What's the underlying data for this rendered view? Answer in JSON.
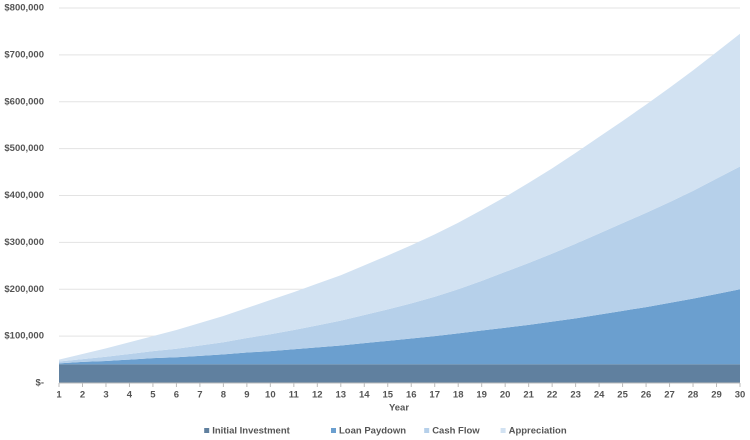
{
  "chart_data": {
    "type": "stacked_area",
    "x_label": "Year",
    "x": [
      1,
      2,
      3,
      4,
      5,
      6,
      7,
      8,
      9,
      10,
      11,
      12,
      13,
      14,
      15,
      16,
      17,
      18,
      19,
      20,
      21,
      22,
      23,
      24,
      25,
      26,
      27,
      28,
      29,
      30
    ],
    "xlim": [
      1,
      30
    ],
    "ylim": [
      0,
      800000
    ],
    "yticks": [
      {
        "value": 0,
        "label": "$-"
      },
      {
        "value": 100000,
        "label": "$100,000"
      },
      {
        "value": 200000,
        "label": "$200,000"
      },
      {
        "value": 300000,
        "label": "$300,000"
      },
      {
        "value": 400000,
        "label": "$400,000"
      },
      {
        "value": 500000,
        "label": "$500,000"
      },
      {
        "value": 600000,
        "label": "$600,000"
      },
      {
        "value": 700000,
        "label": "$700,000"
      },
      {
        "value": 800000,
        "label": "$800,000"
      }
    ],
    "grid": true,
    "legend": "bottom",
    "series": [
      {
        "name": "Initial Investment",
        "color": "#60809f",
        "values": [
          40000,
          40000,
          40000,
          40000,
          40000,
          40000,
          40000,
          40000,
          40000,
          40000,
          40000,
          40000,
          40000,
          40000,
          40000,
          40000,
          40000,
          40000,
          40000,
          40000,
          40000,
          40000,
          40000,
          40000,
          40000,
          40000,
          40000,
          40000,
          40000,
          40000
        ]
      },
      {
        "name": "Loan Paydown",
        "color": "#6b9fcf",
        "values": [
          2000,
          5000,
          7000,
          10000,
          13000,
          15000,
          18000,
          21000,
          25000,
          28000,
          32000,
          36000,
          40000,
          45000,
          50000,
          55000,
          60000,
          66000,
          72000,
          78000,
          84000,
          91000,
          98000,
          106000,
          114000,
          122000,
          131000,
          140000,
          150000,
          160000
        ]
      },
      {
        "name": "Cash Flow",
        "color": "#b6d0ea",
        "values": [
          4000,
          6000,
          9000,
          12000,
          15000,
          18000,
          22000,
          26000,
          31000,
          36000,
          41000,
          47000,
          53000,
          60000,
          67000,
          75000,
          84000,
          94000,
          106000,
          119000,
          132000,
          145000,
          159000,
          173000,
          187000,
          201000,
          215000,
          230000,
          246000,
          262000
        ]
      },
      {
        "name": "Appreciation",
        "color": "#d2e2f2",
        "values": [
          4000,
          11000,
          18000,
          25000,
          32000,
          40000,
          48000,
          56000,
          64000,
          73000,
          81000,
          89000,
          97000,
          106000,
          115000,
          124000,
          133000,
          142000,
          151000,
          160000,
          171000,
          182000,
          194000,
          206000,
          218000,
          231000,
          244000,
          257000,
          270000,
          283000
        ]
      }
    ]
  }
}
